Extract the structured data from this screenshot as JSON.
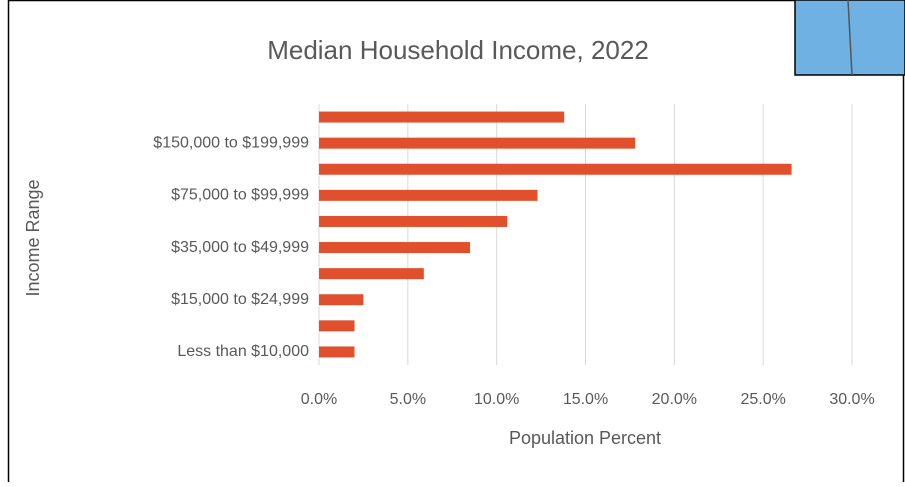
{
  "chart_data": {
    "type": "bar",
    "orientation": "horizontal",
    "title": "Median Household Income, 2022",
    "xlabel": "Population Percent",
    "ylabel": "Income Range",
    "categories": [
      "Less than $10,000",
      null,
      "$15,000 to $24,999",
      null,
      "$35,000 to $49,999",
      null,
      "$75,000 to $99,999",
      null,
      "$150,000 to $199,999",
      null
    ],
    "values": [
      2.0,
      2.0,
      2.5,
      5.9,
      8.5,
      10.6,
      12.3,
      26.6,
      17.8,
      13.8
    ],
    "color": "#e0502d",
    "xlim": [
      0,
      30
    ],
    "xticks": [
      {
        "value": 0,
        "label": "0.0%"
      },
      {
        "value": 5,
        "label": "5.0%"
      },
      {
        "value": 10,
        "label": "10.0%"
      },
      {
        "value": 15,
        "label": "15.0%"
      },
      {
        "value": 20,
        "label": "20.0%"
      },
      {
        "value": 25,
        "label": "25.0%"
      },
      {
        "value": 30,
        "label": "30.0%"
      }
    ],
    "grid": true
  }
}
